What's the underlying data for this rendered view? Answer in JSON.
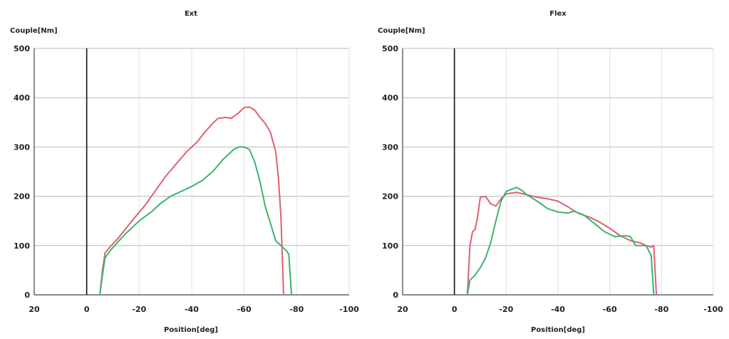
{
  "chart_data": [
    {
      "type": "line",
      "title": "Ext",
      "xlabel": "Position[deg]",
      "ylabel": "Couple[Nm]",
      "xlim": [
        20,
        -100
      ],
      "ylim": [
        0,
        500
      ],
      "xticks": [
        20,
        0,
        -20,
        -40,
        -60,
        -80,
        -100
      ],
      "yticks": [
        0,
        100,
        200,
        300,
        400,
        500
      ],
      "grid": true,
      "zero_line_x": 0,
      "series": [
        {
          "color": "#e06070",
          "points": [
            [
              -5,
              0
            ],
            [
              -6,
              50
            ],
            [
              -7,
              85
            ],
            [
              -9,
              98
            ],
            [
              -12,
              115
            ],
            [
              -15,
              135
            ],
            [
              -18,
              155
            ],
            [
              -22,
              180
            ],
            [
              -26,
              210
            ],
            [
              -30,
              240
            ],
            [
              -34,
              265
            ],
            [
              -38,
              290
            ],
            [
              -42,
              310
            ],
            [
              -45,
              330
            ],
            [
              -48,
              348
            ],
            [
              -50,
              358
            ],
            [
              -53,
              360
            ],
            [
              -55,
              358
            ],
            [
              -58,
              370
            ],
            [
              -60,
              380
            ],
            [
              -62,
              381
            ],
            [
              -64,
              375
            ],
            [
              -66,
              360
            ],
            [
              -68,
              348
            ],
            [
              -70,
              330
            ],
            [
              -72,
              290
            ],
            [
              -73,
              240
            ],
            [
              -74,
              160
            ],
            [
              -74.5,
              80
            ],
            [
              -75,
              0
            ]
          ]
        },
        {
          "color": "#3cb371",
          "points": [
            [
              -5,
              0
            ],
            [
              -6,
              40
            ],
            [
              -7,
              75
            ],
            [
              -9,
              90
            ],
            [
              -12,
              108
            ],
            [
              -15,
              125
            ],
            [
              -20,
              150
            ],
            [
              -25,
              170
            ],
            [
              -28,
              185
            ],
            [
              -32,
              200
            ],
            [
              -36,
              210
            ],
            [
              -40,
              220
            ],
            [
              -44,
              232
            ],
            [
              -48,
              250
            ],
            [
              -52,
              275
            ],
            [
              -56,
              295
            ],
            [
              -58,
              300
            ],
            [
              -60,
              300
            ],
            [
              -62,
              295
            ],
            [
              -64,
              270
            ],
            [
              -66,
              230
            ],
            [
              -68,
              180
            ],
            [
              -70,
              145
            ],
            [
              -72,
              110
            ],
            [
              -74,
              100
            ],
            [
              -76,
              90
            ],
            [
              -77,
              82
            ],
            [
              -78,
              0
            ]
          ]
        }
      ]
    },
    {
      "type": "line",
      "title": "Flex",
      "xlabel": "Position[deg]",
      "ylabel": "Couple[Nm]",
      "xlim": [
        20,
        -100
      ],
      "ylim": [
        0,
        500
      ],
      "xticks": [
        20,
        0,
        -20,
        -40,
        -60,
        -80,
        -100
      ],
      "yticks": [
        0,
        100,
        200,
        300,
        400,
        500
      ],
      "grid": true,
      "zero_line_x": 0,
      "series": [
        {
          "color": "#e06070",
          "points": [
            [
              -5,
              0
            ],
            [
              -6,
              100
            ],
            [
              -7,
              128
            ],
            [
              -8,
              133
            ],
            [
              -9,
              160
            ],
            [
              -10,
              198
            ],
            [
              -12,
              200
            ],
            [
              -14,
              185
            ],
            [
              -16,
              180
            ],
            [
              -18,
              195
            ],
            [
              -20,
              205
            ],
            [
              -24,
              208
            ],
            [
              -28,
              203
            ],
            [
              -32,
              198
            ],
            [
              -36,
              195
            ],
            [
              -40,
              190
            ],
            [
              -44,
              178
            ],
            [
              -48,
              165
            ],
            [
              -52,
              158
            ],
            [
              -56,
              148
            ],
            [
              -60,
              135
            ],
            [
              -64,
              120
            ],
            [
              -68,
              110
            ],
            [
              -72,
              105
            ],
            [
              -74,
              100
            ],
            [
              -76,
              97
            ],
            [
              -77,
              100
            ],
            [
              -78,
              0
            ]
          ]
        },
        {
          "color": "#3cb371",
          "points": [
            [
              -5,
              0
            ],
            [
              -6,
              30
            ],
            [
              -8,
              40
            ],
            [
              -10,
              55
            ],
            [
              -12,
              75
            ],
            [
              -14,
              105
            ],
            [
              -16,
              150
            ],
            [
              -18,
              190
            ],
            [
              -20,
              210
            ],
            [
              -22,
              214
            ],
            [
              -24,
              218
            ],
            [
              -26,
              212
            ],
            [
              -28,
              203
            ],
            [
              -32,
              190
            ],
            [
              -36,
              175
            ],
            [
              -40,
              168
            ],
            [
              -44,
              166
            ],
            [
              -46,
              170
            ],
            [
              -50,
              162
            ],
            [
              -54,
              145
            ],
            [
              -58,
              128
            ],
            [
              -62,
              118
            ],
            [
              -66,
              120
            ],
            [
              -68,
              118
            ],
            [
              -70,
              100
            ],
            [
              -74,
              100
            ],
            [
              -76,
              80
            ],
            [
              -77,
              0
            ]
          ]
        }
      ]
    }
  ]
}
